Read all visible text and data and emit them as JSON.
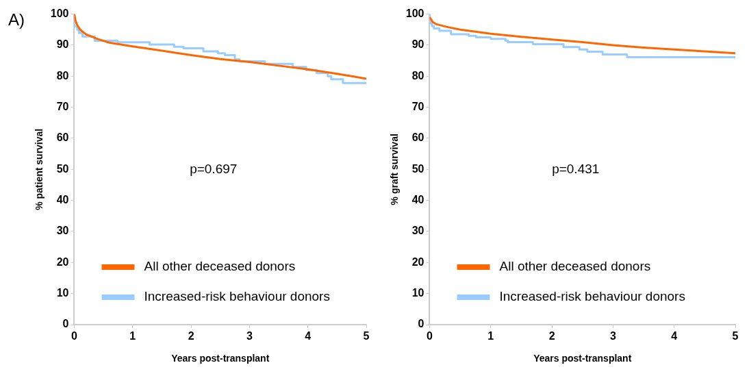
{
  "chart_data": [
    {
      "type": "step",
      "title": "A)",
      "xlabel": "Years post-transplant",
      "ylabel": "% patient survival",
      "xlim": [
        0,
        5
      ],
      "xticks": [
        0,
        1,
        2,
        3,
        4,
        5
      ],
      "ylim": [
        0,
        100
      ],
      "yticks": [
        0,
        10,
        20,
        30,
        40,
        50,
        60,
        70,
        80,
        90,
        100
      ],
      "grid": false,
      "legend": "bottom left",
      "marker": "none",
      "annotations": [
        "p=0.697"
      ],
      "series": [
        {
          "name": "All other deceased donors",
          "type": "line",
          "color": "#ff6600",
          "x": [
            0,
            0.02,
            0.05,
            0.1,
            0.2,
            0.4,
            0.6,
            0.8,
            1,
            1.5,
            2,
            2.5,
            3,
            3.5,
            4,
            4.5,
            5
          ],
          "values": [
            100,
            98,
            96.5,
            95,
            93.5,
            92,
            90.8,
            90.2,
            89.6,
            88.2,
            86.8,
            85.5,
            84.6,
            83.4,
            82.2,
            80.8,
            79.2
          ]
        },
        {
          "name": "Increased-risk behaviour donors",
          "color": "#99ccff",
          "x": [
            0,
            0.05,
            0.08,
            0.14,
            0.35,
            0.74,
            1.29,
            1.71,
            1.87,
            2.21,
            2.46,
            2.58,
            2.75,
            2.83,
            3.26,
            3.74,
            3.97,
            4.15,
            4.34,
            4.4,
            4.6,
            4.67,
            5
          ],
          "values": [
            100,
            96,
            95,
            93.9,
            92.8,
            91.4,
            90.9,
            90.2,
            89.5,
            89,
            88,
            87.4,
            86.8,
            85.4,
            84.8,
            84,
            83,
            82,
            81,
            80,
            79,
            77.8,
            77.8
          ]
        }
      ]
    },
    {
      "type": "step",
      "xlabel": "Years post-transplant",
      "ylabel": "% graft survival",
      "xlim": [
        0,
        5
      ],
      "xticks": [
        0,
        1,
        2,
        3,
        4,
        5
      ],
      "ylim": [
        0,
        100
      ],
      "yticks": [
        0,
        10,
        20,
        30,
        40,
        50,
        60,
        70,
        80,
        90,
        100
      ],
      "grid": false,
      "legend": "bottom left",
      "marker": "none",
      "annotations": [
        "p=0.431"
      ],
      "series": [
        {
          "name": "All other deceased donors",
          "type": "line",
          "color": "#ff6600",
          "x": [
            0,
            0.05,
            0.1,
            0.3,
            0.5,
            1,
            1.5,
            2,
            2.5,
            3,
            3.5,
            4,
            4.5,
            5
          ],
          "values": [
            99,
            97.5,
            96.8,
            95.8,
            95,
            93.7,
            92.7,
            91.8,
            91,
            90,
            89.2,
            88.6,
            88,
            87.4
          ]
        },
        {
          "name": "Increased-risk behaviour donors",
          "color": "#99ccff",
          "x": [
            0,
            0.02,
            0.04,
            0.07,
            0.16,
            0.35,
            0.64,
            0.76,
            1,
            1.24,
            1.28,
            1.69,
            2.19,
            2.45,
            2.58,
            2.83,
            3.23,
            3.92,
            5
          ],
          "values": [
            100,
            98,
            97,
            96.1,
            95.4,
            94.6,
            93.5,
            93,
            92.5,
            92,
            91.5,
            91,
            90.3,
            89.4,
            88.6,
            87.9,
            87,
            86.1,
            86.1
          ]
        }
      ]
    }
  ]
}
